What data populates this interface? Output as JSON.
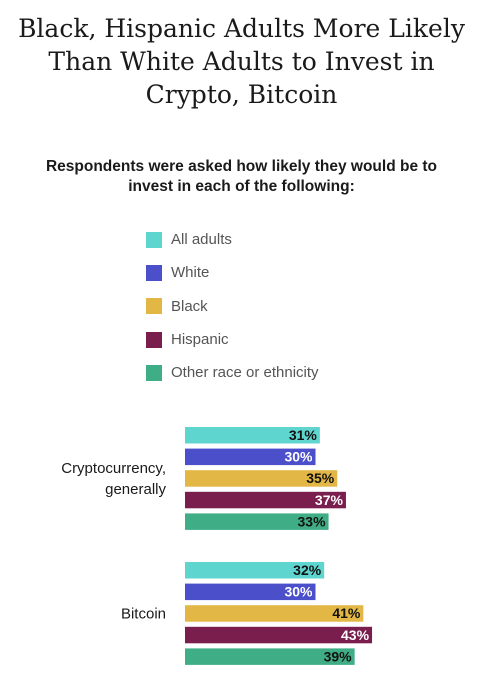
{
  "title_lines": [
    "Black, Hispanic Adults More Likely",
    "Than White Adults to Invest in",
    "Crypto, Bitcoin"
  ],
  "subtitle_lines": [
    "Respondents were asked how likely they would be to",
    "invest in each of the following:"
  ],
  "colors": {
    "all_adults": "#5fd5cf",
    "white": "#4b4fc9",
    "black": "#e2b745",
    "hispanic": "#7a1e4e",
    "other": "#3fae86"
  },
  "chart_data": {
    "type": "bar",
    "orientation": "horizontal",
    "title": "Black, Hispanic Adults More Likely Than White Adults to Invest in Crypto, Bitcoin",
    "subtitle": "Respondents were asked how likely they would be to invest in each of the following:",
    "categories": [
      [
        "Cryptocurrency,",
        "generally"
      ],
      [
        "Bitcoin"
      ]
    ],
    "value_suffix": "%",
    "legend_position": "top",
    "grid": false,
    "series": [
      {
        "name": "All adults",
        "color_key": "all_adults",
        "label_color": "#111111",
        "values": [
          31,
          32
        ]
      },
      {
        "name": "White",
        "color_key": "white",
        "label_color": "#ffffff",
        "values": [
          30,
          30
        ]
      },
      {
        "name": "Black",
        "color_key": "black",
        "label_color": "#111111",
        "values": [
          35,
          41
        ]
      },
      {
        "name": "Hispanic",
        "color_key": "hispanic",
        "label_color": "#ffffff",
        "values": [
          37,
          43
        ]
      },
      {
        "name": "Other race or ethnicity",
        "color_key": "other",
        "label_color": "#111111",
        "values": [
          33,
          39
        ]
      }
    ]
  }
}
